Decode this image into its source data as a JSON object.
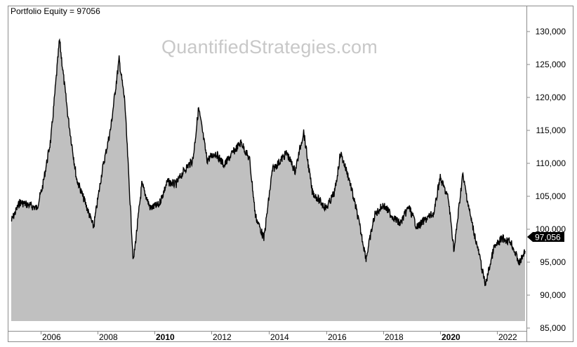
{
  "header": {
    "title": "Portfolio Equity = 97056",
    "watermark": "QuantifiedStrategies.com"
  },
  "colors": {
    "fill": "#c0c0c0",
    "line": "#000000",
    "frame": "#8c8c8c",
    "last_value_badge_bg": "#000000",
    "last_value_badge_text": "#ffffff",
    "watermark": "#c8c8c8"
  },
  "last_value_badge": "97,056",
  "y_axis": {
    "ticks": [
      "130,000",
      "125,000",
      "120,000",
      "115,000",
      "110,000",
      "105,000",
      "100,000",
      "95,000",
      "90,000",
      "85,000"
    ]
  },
  "x_axis": {
    "ticks": [
      {
        "label": "2006",
        "bold": false
      },
      {
        "label": "2008",
        "bold": false
      },
      {
        "label": "2010",
        "bold": true
      },
      {
        "label": "2012",
        "bold": false
      },
      {
        "label": "2014",
        "bold": false
      },
      {
        "label": "2016",
        "bold": false
      },
      {
        "label": "2018",
        "bold": false
      },
      {
        "label": "2020",
        "bold": true
      },
      {
        "label": "2022",
        "bold": false
      }
    ]
  },
  "chart_data": {
    "type": "area",
    "title": "Portfolio Equity = 97056",
    "xlabel": "",
    "ylabel": "",
    "ylim": [
      85000,
      130000
    ],
    "xlim": [
      2005.0,
      2023.0
    ],
    "grid": false,
    "legend": "none",
    "annotations": [
      "QuantifiedStrategies.com",
      "Last value: 97,056"
    ],
    "series": [
      {
        "name": "Portfolio Equity",
        "x": [
          2004.9,
          2005.2,
          2005.5,
          2005.8,
          2006.0,
          2006.3,
          2006.6,
          2006.9,
          2007.2,
          2007.5,
          2007.8,
          2008.1,
          2008.4,
          2008.7,
          2008.9,
          2009.2,
          2009.5,
          2009.8,
          2010.1,
          2010.4,
          2010.7,
          2011.0,
          2011.3,
          2011.5,
          2011.8,
          2012.1,
          2012.4,
          2012.7,
          2013.0,
          2013.3,
          2013.5,
          2013.8,
          2014.1,
          2014.4,
          2014.6,
          2014.9,
          2015.2,
          2015.5,
          2015.8,
          2016.0,
          2016.3,
          2016.5,
          2016.8,
          2017.1,
          2017.4,
          2017.7,
          2018.0,
          2018.3,
          2018.6,
          2018.9,
          2019.2,
          2019.5,
          2019.8,
          2020.0,
          2020.3,
          2020.5,
          2020.8,
          2021.1,
          2021.4,
          2021.6,
          2021.9,
          2022.2,
          2022.5,
          2022.8,
          2023.0
        ],
        "values": [
          101200,
          104100,
          103700,
          103200,
          106400,
          113800,
          128700,
          117100,
          107700,
          104100,
          100300,
          108800,
          115200,
          125800,
          119400,
          95000,
          106800,
          103200,
          103700,
          107200,
          106800,
          109000,
          110500,
          118400,
          110500,
          111600,
          109700,
          111600,
          113200,
          110500,
          102100,
          98600,
          109000,
          110500,
          111600,
          108800,
          114800,
          105700,
          104100,
          103200,
          105700,
          111600,
          107700,
          102100,
          95600,
          102100,
          103700,
          102100,
          100800,
          103400,
          100300,
          101500,
          102500,
          107900,
          104600,
          96700,
          108300,
          101500,
          95800,
          91500,
          97100,
          98600,
          98100,
          94800,
          96700
        ],
        "note": "Approximate values read from pixel positions; curve is a dense daily series with many small fluctuations."
      }
    ]
  }
}
